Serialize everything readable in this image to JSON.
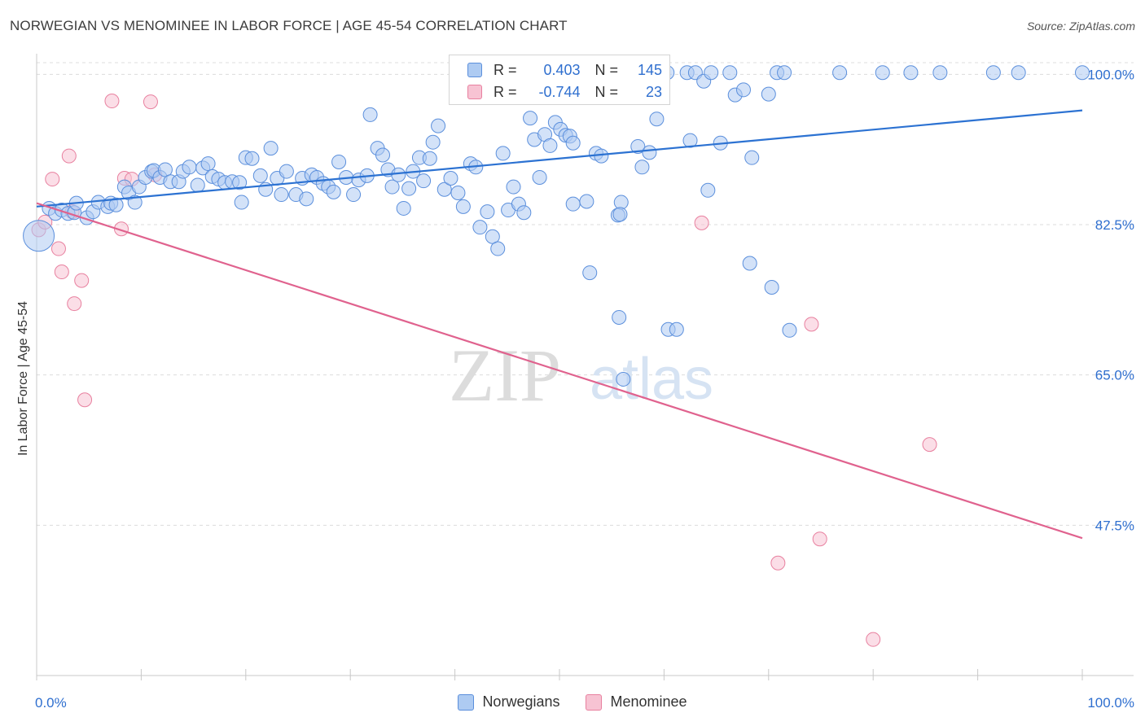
{
  "header": {
    "title": "NORWEGIAN VS MENOMINEE IN LABOR FORCE | AGE 45-54 CORRELATION CHART",
    "source": "Source: ZipAtlas.com"
  },
  "watermark": {
    "zip": "ZIP",
    "atlas": "atlas"
  },
  "legend_top": {
    "rows": [
      {
        "r_label": "R =",
        "r_value": "0.403",
        "n_label": "N =",
        "n_value": "145"
      },
      {
        "r_label": "R =",
        "r_value": "-0.744",
        "n_label": "N =",
        "n_value": "23"
      }
    ]
  },
  "legend_bottom": {
    "items": [
      "Norwegians",
      "Menominee"
    ]
  },
  "colors": {
    "blue_fill": "#aecbf2",
    "blue_stroke": "#5b8fdc",
    "blue_line": "#2c72d2",
    "blue_text": "#2f6fcf",
    "pink_fill": "#f7c3d3",
    "pink_stroke": "#e8809f",
    "pink_line": "#e0628e",
    "pink_text": "#2f6fcf",
    "grid": "#dcdcdc",
    "axis_text": "#2f6fcf"
  },
  "chart_data": {
    "type": "scatter",
    "title": "NORWEGIAN VS MENOMINEE IN LABOR FORCE | AGE 45-54 CORRELATION CHART",
    "xlabel": "",
    "ylabel": "In Labor Force | Age 45-54",
    "xlim": [
      0,
      100
    ],
    "ylim": [
      30,
      102.4
    ],
    "x_tick_labels": [
      "0.0%",
      "100.0%"
    ],
    "y_ticks": [
      {
        "value": 100.0,
        "label": "100.0%"
      },
      {
        "value": 82.5,
        "label": "82.5%"
      },
      {
        "value": 65.0,
        "label": "65.0%"
      },
      {
        "value": 47.5,
        "label": "47.5%"
      }
    ],
    "grid": true,
    "legend_position": "top-center",
    "series": [
      {
        "name": "Norwegians",
        "color": "#5b8fdc",
        "trend": {
          "x": [
            0,
            100
          ],
          "y": [
            84.6,
            95.8
          ]
        },
        "points": [
          {
            "x": 0.2,
            "y": 81.2,
            "big": true
          },
          {
            "x": 1.2,
            "y": 84.4
          },
          {
            "x": 1.8,
            "y": 83.8
          },
          {
            "x": 2.4,
            "y": 84.2
          },
          {
            "x": 3.0,
            "y": 83.8
          },
          {
            "x": 3.6,
            "y": 83.9
          },
          {
            "x": 3.8,
            "y": 85.0
          },
          {
            "x": 4.8,
            "y": 83.3
          },
          {
            "x": 5.4,
            "y": 84.0
          },
          {
            "x": 5.9,
            "y": 85.1
          },
          {
            "x": 6.8,
            "y": 84.6
          },
          {
            "x": 7.1,
            "y": 85.0
          },
          {
            "x": 7.6,
            "y": 84.8
          },
          {
            "x": 8.4,
            "y": 86.9
          },
          {
            "x": 8.8,
            "y": 86.2
          },
          {
            "x": 9.4,
            "y": 85.1
          },
          {
            "x": 9.8,
            "y": 86.9
          },
          {
            "x": 10.4,
            "y": 88.0
          },
          {
            "x": 11.0,
            "y": 88.7
          },
          {
            "x": 11.2,
            "y": 88.8
          },
          {
            "x": 11.8,
            "y": 88.0
          },
          {
            "x": 12.3,
            "y": 88.9
          },
          {
            "x": 12.8,
            "y": 87.5
          },
          {
            "x": 13.6,
            "y": 87.5
          },
          {
            "x": 14.0,
            "y": 88.7
          },
          {
            "x": 14.6,
            "y": 89.2
          },
          {
            "x": 15.4,
            "y": 87.1
          },
          {
            "x": 15.9,
            "y": 89.1
          },
          {
            "x": 16.4,
            "y": 89.6
          },
          {
            "x": 16.8,
            "y": 88.1
          },
          {
            "x": 17.4,
            "y": 87.8
          },
          {
            "x": 18.0,
            "y": 87.4
          },
          {
            "x": 18.7,
            "y": 87.5
          },
          {
            "x": 19.4,
            "y": 87.4
          },
          {
            "x": 20.0,
            "y": 90.3
          },
          {
            "x": 19.6,
            "y": 85.1
          },
          {
            "x": 20.6,
            "y": 90.2
          },
          {
            "x": 21.4,
            "y": 88.2
          },
          {
            "x": 21.9,
            "y": 86.6
          },
          {
            "x": 22.4,
            "y": 91.4
          },
          {
            "x": 23.0,
            "y": 87.9
          },
          {
            "x": 23.4,
            "y": 86.0
          },
          {
            "x": 23.9,
            "y": 88.7
          },
          {
            "x": 24.8,
            "y": 86.0
          },
          {
            "x": 25.4,
            "y": 87.9
          },
          {
            "x": 25.8,
            "y": 85.5
          },
          {
            "x": 26.3,
            "y": 88.3
          },
          {
            "x": 26.8,
            "y": 88.0
          },
          {
            "x": 27.4,
            "y": 87.3
          },
          {
            "x": 27.9,
            "y": 86.9
          },
          {
            "x": 28.4,
            "y": 86.3
          },
          {
            "x": 28.9,
            "y": 89.8
          },
          {
            "x": 29.6,
            "y": 88.0
          },
          {
            "x": 30.3,
            "y": 86.0
          },
          {
            "x": 30.8,
            "y": 87.7
          },
          {
            "x": 31.6,
            "y": 88.2
          },
          {
            "x": 31.9,
            "y": 95.3
          },
          {
            "x": 32.6,
            "y": 91.4
          },
          {
            "x": 33.1,
            "y": 90.6
          },
          {
            "x": 33.6,
            "y": 88.9
          },
          {
            "x": 34.0,
            "y": 86.9
          },
          {
            "x": 34.6,
            "y": 88.3
          },
          {
            "x": 35.1,
            "y": 84.4
          },
          {
            "x": 35.6,
            "y": 86.7
          },
          {
            "x": 36.0,
            "y": 88.7
          },
          {
            "x": 36.6,
            "y": 90.3
          },
          {
            "x": 37.0,
            "y": 87.6
          },
          {
            "x": 37.6,
            "y": 90.2
          },
          {
            "x": 37.9,
            "y": 92.1
          },
          {
            "x": 38.4,
            "y": 94.0
          },
          {
            "x": 39.0,
            "y": 86.6
          },
          {
            "x": 39.6,
            "y": 87.9
          },
          {
            "x": 40.3,
            "y": 86.2
          },
          {
            "x": 40.8,
            "y": 84.6
          },
          {
            "x": 41.5,
            "y": 89.6
          },
          {
            "x": 42.0,
            "y": 89.2
          },
          {
            "x": 42.4,
            "y": 82.2
          },
          {
            "x": 43.1,
            "y": 84.0
          },
          {
            "x": 43.6,
            "y": 81.1
          },
          {
            "x": 44.1,
            "y": 79.7
          },
          {
            "x": 44.6,
            "y": 90.8
          },
          {
            "x": 45.1,
            "y": 84.2
          },
          {
            "x": 45.6,
            "y": 86.9
          },
          {
            "x": 46.1,
            "y": 84.9
          },
          {
            "x": 46.6,
            "y": 83.9
          },
          {
            "x": 47.2,
            "y": 94.9
          },
          {
            "x": 47.6,
            "y": 92.4
          },
          {
            "x": 48.1,
            "y": 88.0
          },
          {
            "x": 48.6,
            "y": 93.0
          },
          {
            "x": 49.1,
            "y": 91.7
          },
          {
            "x": 49.6,
            "y": 94.4
          },
          {
            "x": 50.1,
            "y": 93.6
          },
          {
            "x": 50.6,
            "y": 92.9
          },
          {
            "x": 51.0,
            "y": 92.8
          },
          {
            "x": 51.3,
            "y": 92.0
          },
          {
            "x": 51.3,
            "y": 84.9
          },
          {
            "x": 52.6,
            "y": 85.2
          },
          {
            "x": 52.9,
            "y": 76.9
          },
          {
            "x": 53.5,
            "y": 90.8
          },
          {
            "x": 54.0,
            "y": 90.5
          },
          {
            "x": 55.0,
            "y": 97.9
          },
          {
            "x": 55.6,
            "y": 83.6
          },
          {
            "x": 55.9,
            "y": 85.1
          },
          {
            "x": 56.1,
            "y": 64.5
          },
          {
            "x": 55.7,
            "y": 71.7
          },
          {
            "x": 55.8,
            "y": 83.7
          },
          {
            "x": 56.7,
            "y": 99.4
          },
          {
            "x": 57.5,
            "y": 91.6
          },
          {
            "x": 57.9,
            "y": 89.2
          },
          {
            "x": 58.6,
            "y": 90.9
          },
          {
            "x": 59.3,
            "y": 94.8
          },
          {
            "x": 60.3,
            "y": 100.2
          },
          {
            "x": 60.4,
            "y": 70.3
          },
          {
            "x": 61.2,
            "y": 70.3
          },
          {
            "x": 62.2,
            "y": 100.2
          },
          {
            "x": 62.5,
            "y": 92.3
          },
          {
            "x": 63.0,
            "y": 100.2
          },
          {
            "x": 63.8,
            "y": 99.2
          },
          {
            "x": 64.5,
            "y": 100.2
          },
          {
            "x": 64.2,
            "y": 86.5
          },
          {
            "x": 65.4,
            "y": 92.0
          },
          {
            "x": 66.3,
            "y": 100.2
          },
          {
            "x": 66.8,
            "y": 97.6
          },
          {
            "x": 67.6,
            "y": 98.2
          },
          {
            "x": 68.4,
            "y": 90.3
          },
          {
            "x": 68.2,
            "y": 78.0
          },
          {
            "x": 70.0,
            "y": 97.7
          },
          {
            "x": 70.3,
            "y": 75.2
          },
          {
            "x": 70.8,
            "y": 100.2
          },
          {
            "x": 71.5,
            "y": 100.2
          },
          {
            "x": 72.0,
            "y": 70.2
          },
          {
            "x": 76.8,
            "y": 100.2
          },
          {
            "x": 80.9,
            "y": 100.2
          },
          {
            "x": 83.6,
            "y": 100.2
          },
          {
            "x": 86.4,
            "y": 100.2
          },
          {
            "x": 91.5,
            "y": 100.2
          },
          {
            "x": 93.9,
            "y": 100.2
          },
          {
            "x": 100.0,
            "y": 100.2
          }
        ]
      },
      {
        "name": "Menominee",
        "color": "#e8809f",
        "trend": {
          "x": [
            0,
            100
          ],
          "y": [
            85.0,
            46.0
          ]
        },
        "points": [
          {
            "x": 0.2,
            "y": 81.9
          },
          {
            "x": 0.8,
            "y": 82.8
          },
          {
            "x": 1.5,
            "y": 87.8
          },
          {
            "x": 2.1,
            "y": 79.7
          },
          {
            "x": 2.4,
            "y": 77.0
          },
          {
            "x": 3.1,
            "y": 90.5
          },
          {
            "x": 3.4,
            "y": 84.0
          },
          {
            "x": 3.6,
            "y": 73.3
          },
          {
            "x": 4.3,
            "y": 76.0
          },
          {
            "x": 4.6,
            "y": 62.1
          },
          {
            "x": 7.2,
            "y": 96.9
          },
          {
            "x": 8.1,
            "y": 82.0
          },
          {
            "x": 8.4,
            "y": 87.9
          },
          {
            "x": 9.1,
            "y": 87.8
          },
          {
            "x": 10.9,
            "y": 96.8
          },
          {
            "x": 11.3,
            "y": 88.3
          },
          {
            "x": 63.6,
            "y": 82.7
          },
          {
            "x": 70.9,
            "y": 43.1
          },
          {
            "x": 74.1,
            "y": 70.9
          },
          {
            "x": 74.9,
            "y": 45.9
          },
          {
            "x": 80.0,
            "y": 34.2
          },
          {
            "x": 85.4,
            "y": 56.9
          }
        ]
      }
    ]
  }
}
